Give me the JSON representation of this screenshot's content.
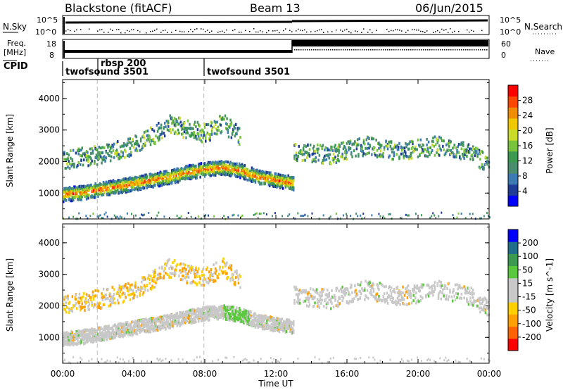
{
  "header": {
    "station": "Blackstone (fitACF)",
    "beam": "Beam 13",
    "date": "06/Jun/2015"
  },
  "left_labels": {
    "nsky": "N.Sky",
    "freq_line1": "Freq.",
    "freq_line2": "[MHz]",
    "cpid": "CPID"
  },
  "right_labels": {
    "nsearch": "N.Search",
    "nave": "Nave"
  },
  "nsky_ticks": [
    "10^5",
    "10^0"
  ],
  "nsearch_ticks": [
    "10^5",
    "10^0"
  ],
  "freq_ticks": [
    "18",
    "8"
  ],
  "nave_ticks": [
    "60",
    "0"
  ],
  "cpid_segments": [
    {
      "label": "twofsound 3501",
      "start_hour": 0,
      "end_hour": 1.95
    },
    {
      "label": "rbsp 200",
      "start_hour": 1.95,
      "end_hour": 7.95
    },
    {
      "label": "twofsound 3501",
      "start_hour": 7.95,
      "end_hour": 24
    }
  ],
  "chart_data": [
    {
      "type": "heatmap",
      "panel": "power",
      "ylabel": "Slant Range [km]",
      "yticks": [
        1000,
        2000,
        3000,
        4000
      ],
      "ylim": [
        180,
        4600
      ],
      "xlim": [
        0,
        24
      ],
      "colorbar_label": "Power [dB]",
      "colorbar_ticks": [
        "28",
        "24",
        "20",
        "16",
        "12",
        "8",
        "4"
      ],
      "colorbar_colors": [
        "#0000ff",
        "#1e3c96",
        "#3c7ab4",
        "#4a8c6e",
        "#3c9a50",
        "#78c33c",
        "#c8dc28",
        "#f0c800",
        "#f08c00",
        "#ff4600",
        "#ff0000"
      ],
      "features": [
        {
          "name": "main echo band",
          "points": [
            [
              0,
              950
            ],
            [
              1,
              1000
            ],
            [
              2,
              1100
            ],
            [
              3,
              1200
            ],
            [
              4,
              1300
            ],
            [
              5,
              1400
            ],
            [
              6,
              1500
            ],
            [
              7,
              1650
            ],
            [
              8,
              1750
            ],
            [
              9,
              1800
            ],
            [
              10,
              1700
            ],
            [
              11,
              1500
            ],
            [
              12,
              1400
            ],
            [
              13,
              1300
            ]
          ],
          "level": "high"
        },
        {
          "name": "upper scatter",
          "points": [
            [
              0,
              2050
            ],
            [
              2,
              2200
            ],
            [
              4,
              2500
            ],
            [
              5,
              2800
            ],
            [
              6,
              3200
            ],
            [
              7,
              3000
            ],
            [
              8,
              2900
            ],
            [
              9,
              3200
            ],
            [
              10,
              2800
            ]
          ],
          "level": "mid"
        },
        {
          "name": "late band",
          "points": [
            [
              13,
              2300
            ],
            [
              15,
              2200
            ],
            [
              17,
              2500
            ],
            [
              19,
              2300
            ],
            [
              21,
              2500
            ],
            [
              23,
              2300
            ],
            [
              24,
              1800
            ]
          ],
          "level": "mid"
        }
      ]
    },
    {
      "type": "heatmap",
      "panel": "velocity",
      "xlabel": "Time UT",
      "ylabel": "Slant Range [km]",
      "xticks": [
        "00:00",
        "04:00",
        "08:00",
        "12:00",
        "16:00",
        "20:00",
        "00:00"
      ],
      "yticks": [
        1000,
        2000,
        3000,
        4000
      ],
      "ylim": [
        180,
        4600
      ],
      "xlim": [
        0,
        24
      ],
      "colorbar_label": "Velocity [m s^-1]",
      "colorbar_ticks": [
        "200",
        "100",
        "50",
        "15",
        "-15",
        "-50",
        "-100",
        "-200"
      ],
      "colorbar_colors": [
        "#ff0000",
        "#ff6400",
        "#ffa000",
        "#ffd000",
        "#c8c8c8",
        "#c8c8c8",
        "#5ac83c",
        "#3c9a50",
        "#1e6e8c",
        "#0000ff"
      ],
      "features": [
        {
          "name": "main echo band",
          "points": [
            [
              0,
              950
            ],
            [
              1,
              1000
            ],
            [
              2,
              1100
            ],
            [
              3,
              1200
            ],
            [
              4,
              1300
            ],
            [
              5,
              1400
            ],
            [
              6,
              1500
            ],
            [
              7,
              1650
            ],
            [
              8,
              1750
            ],
            [
              9,
              1800
            ],
            [
              10,
              1700
            ],
            [
              11,
              1500
            ],
            [
              12,
              1400
            ],
            [
              13,
              1300
            ]
          ],
          "level": "zero"
        },
        {
          "name": "upper scatter",
          "points": [
            [
              0,
              2050
            ],
            [
              2,
              2200
            ],
            [
              4,
              2500
            ],
            [
              5,
              2800
            ],
            [
              6,
              3200
            ],
            [
              7,
              3000
            ],
            [
              8,
              2900
            ],
            [
              9,
              3200
            ],
            [
              10,
              2800
            ]
          ],
          "level": "negative"
        },
        {
          "name": "late band",
          "points": [
            [
              13,
              2300
            ],
            [
              15,
              2200
            ],
            [
              17,
              2500
            ],
            [
              19,
              2300
            ],
            [
              21,
              2500
            ],
            [
              23,
              2300
            ],
            [
              24,
              1800
            ]
          ],
          "level": "zero"
        }
      ]
    }
  ]
}
